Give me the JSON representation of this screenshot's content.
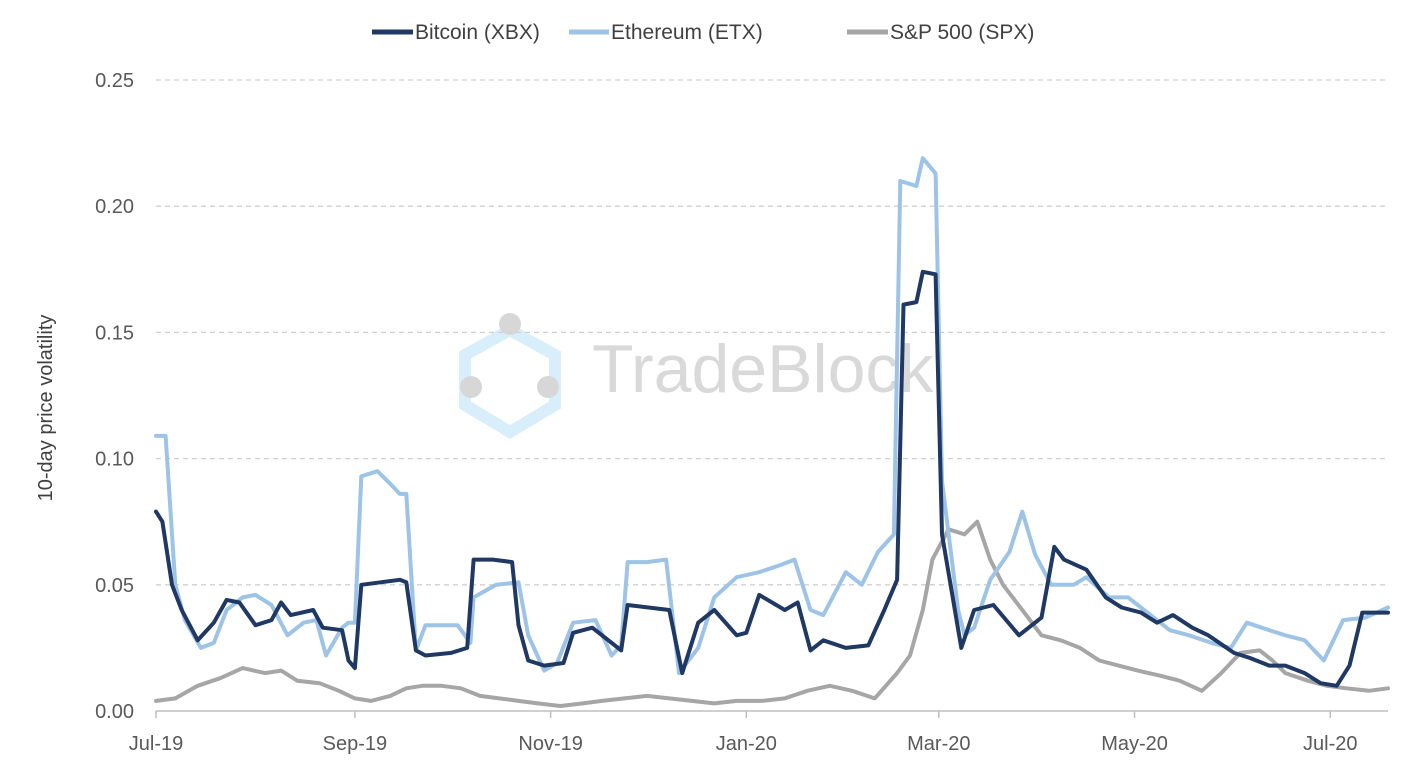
{
  "chart_data": {
    "type": "line",
    "title": "",
    "xlabel": "",
    "ylabel": "10-day price volatility",
    "ylim": [
      0,
      0.25
    ],
    "yticks": [
      0.0,
      0.05,
      0.1,
      0.15,
      0.2,
      0.25
    ],
    "ytick_labels": [
      "0.00",
      "0.05",
      "0.10",
      "0.15",
      "0.20",
      "0.25"
    ],
    "xlim": [
      "2019-07-01",
      "2020-07-19"
    ],
    "xticks": [
      {
        "date": "2019-07-01",
        "label": "Jul-19"
      },
      {
        "date": "2019-09-01",
        "label": "Sep-19"
      },
      {
        "date": "2019-11-01",
        "label": "Nov-19"
      },
      {
        "date": "2020-01-01",
        "label": "Jan-20"
      },
      {
        "date": "2020-03-01",
        "label": "Mar-20"
      },
      {
        "date": "2020-05-01",
        "label": "May-20"
      },
      {
        "date": "2020-07-01",
        "label": "Jul-20"
      }
    ],
    "grid": "horizontal-dashed",
    "legend": "top-center",
    "watermark": "TradeBlock",
    "series": [
      {
        "name": "Bitcoin (XBX)",
        "color": "#1f3864",
        "points": [
          [
            "2019-07-01",
            0.079
          ],
          [
            "2019-07-03",
            0.075
          ],
          [
            "2019-07-06",
            0.05
          ],
          [
            "2019-07-09",
            0.04
          ],
          [
            "2019-07-14",
            0.028
          ],
          [
            "2019-07-19",
            0.035
          ],
          [
            "2019-07-23",
            0.044
          ],
          [
            "2019-07-27",
            0.043
          ],
          [
            "2019-08-01",
            0.034
          ],
          [
            "2019-08-06",
            0.036
          ],
          [
            "2019-08-09",
            0.043
          ],
          [
            "2019-08-12",
            0.038
          ],
          [
            "2019-08-19",
            0.04
          ],
          [
            "2019-08-22",
            0.033
          ],
          [
            "2019-08-28",
            0.032
          ],
          [
            "2019-08-30",
            0.02
          ],
          [
            "2019-09-01",
            0.017
          ],
          [
            "2019-09-03",
            0.05
          ],
          [
            "2019-09-09",
            0.051
          ],
          [
            "2019-09-15",
            0.052
          ],
          [
            "2019-09-17",
            0.051
          ],
          [
            "2019-09-20",
            0.024
          ],
          [
            "2019-09-23",
            0.022
          ],
          [
            "2019-10-01",
            0.023
          ],
          [
            "2019-10-06",
            0.025
          ],
          [
            "2019-10-08",
            0.06
          ],
          [
            "2019-10-14",
            0.06
          ],
          [
            "2019-10-20",
            0.059
          ],
          [
            "2019-10-22",
            0.034
          ],
          [
            "2019-10-25",
            0.02
          ],
          [
            "2019-10-30",
            0.018
          ],
          [
            "2019-11-05",
            0.019
          ],
          [
            "2019-11-08",
            0.031
          ],
          [
            "2019-11-14",
            0.033
          ],
          [
            "2019-11-19",
            0.028
          ],
          [
            "2019-11-23",
            0.024
          ],
          [
            "2019-11-25",
            0.042
          ],
          [
            "2019-12-08",
            0.04
          ],
          [
            "2019-12-12",
            0.015
          ],
          [
            "2019-12-17",
            0.035
          ],
          [
            "2019-12-22",
            0.04
          ],
          [
            "2019-12-29",
            0.03
          ],
          [
            "2020-01-01",
            0.031
          ],
          [
            "2020-01-05",
            0.046
          ],
          [
            "2020-01-13",
            0.04
          ],
          [
            "2020-01-17",
            0.043
          ],
          [
            "2020-01-21",
            0.024
          ],
          [
            "2020-01-25",
            0.028
          ],
          [
            "2020-02-01",
            0.025
          ],
          [
            "2020-02-08",
            0.026
          ],
          [
            "2020-02-13",
            0.04
          ],
          [
            "2020-02-17",
            0.052
          ],
          [
            "2020-02-19",
            0.161
          ],
          [
            "2020-02-23",
            0.162
          ],
          [
            "2020-02-25",
            0.174
          ],
          [
            "2020-02-29",
            0.173
          ],
          [
            "2020-03-02",
            0.07
          ],
          [
            "2020-03-08",
            0.025
          ],
          [
            "2020-03-12",
            0.04
          ],
          [
            "2020-03-18",
            0.042
          ],
          [
            "2020-03-26",
            0.03
          ],
          [
            "2020-04-02",
            0.037
          ],
          [
            "2020-04-06",
            0.065
          ],
          [
            "2020-04-09",
            0.06
          ],
          [
            "2020-04-16",
            0.056
          ],
          [
            "2020-04-22",
            0.045
          ],
          [
            "2020-04-27",
            0.041
          ],
          [
            "2020-05-03",
            0.039
          ],
          [
            "2020-05-08",
            0.035
          ],
          [
            "2020-05-13",
            0.038
          ],
          [
            "2020-05-19",
            0.033
          ],
          [
            "2020-05-24",
            0.03
          ],
          [
            "2020-06-01",
            0.023
          ],
          [
            "2020-06-06",
            0.021
          ],
          [
            "2020-06-12",
            0.018
          ],
          [
            "2020-06-17",
            0.018
          ],
          [
            "2020-06-23",
            0.015
          ],
          [
            "2020-06-28",
            0.011
          ],
          [
            "2020-07-03",
            0.01
          ],
          [
            "2020-07-07",
            0.018
          ],
          [
            "2020-07-11",
            0.039
          ],
          [
            "2020-07-19",
            0.039
          ]
        ]
      },
      {
        "name": "Ethereum (ETX)",
        "color": "#9dc3e6",
        "points": [
          [
            "2019-07-01",
            0.109
          ],
          [
            "2019-07-04",
            0.109
          ],
          [
            "2019-07-07",
            0.05
          ],
          [
            "2019-07-10",
            0.036
          ],
          [
            "2019-07-15",
            0.025
          ],
          [
            "2019-07-19",
            0.027
          ],
          [
            "2019-07-23",
            0.04
          ],
          [
            "2019-07-28",
            0.045
          ],
          [
            "2019-08-01",
            0.046
          ],
          [
            "2019-08-06",
            0.042
          ],
          [
            "2019-08-11",
            0.03
          ],
          [
            "2019-08-16",
            0.035
          ],
          [
            "2019-08-20",
            0.036
          ],
          [
            "2019-08-23",
            0.022
          ],
          [
            "2019-08-28",
            0.033
          ],
          [
            "2019-08-30",
            0.035
          ],
          [
            "2019-09-01",
            0.035
          ],
          [
            "2019-09-03",
            0.093
          ],
          [
            "2019-09-08",
            0.095
          ],
          [
            "2019-09-12",
            0.09
          ],
          [
            "2019-09-15",
            0.086
          ],
          [
            "2019-09-17",
            0.086
          ],
          [
            "2019-09-20",
            0.024
          ],
          [
            "2019-09-23",
            0.034
          ],
          [
            "2019-10-03",
            0.034
          ],
          [
            "2019-10-07",
            0.027
          ],
          [
            "2019-10-08",
            0.045
          ],
          [
            "2019-10-15",
            0.05
          ],
          [
            "2019-10-22",
            0.051
          ],
          [
            "2019-10-25",
            0.03
          ],
          [
            "2019-10-30",
            0.016
          ],
          [
            "2019-11-03",
            0.019
          ],
          [
            "2019-11-08",
            0.035
          ],
          [
            "2019-11-15",
            0.036
          ],
          [
            "2019-11-20",
            0.022
          ],
          [
            "2019-11-23",
            0.026
          ],
          [
            "2019-11-25",
            0.059
          ],
          [
            "2019-12-01",
            0.059
          ],
          [
            "2019-12-07",
            0.06
          ],
          [
            "2019-12-11",
            0.015
          ],
          [
            "2019-12-17",
            0.025
          ],
          [
            "2019-12-22",
            0.045
          ],
          [
            "2019-12-29",
            0.053
          ],
          [
            "2020-01-05",
            0.055
          ],
          [
            "2020-01-12",
            0.058
          ],
          [
            "2020-01-16",
            0.06
          ],
          [
            "2020-01-21",
            0.04
          ],
          [
            "2020-01-25",
            0.038
          ],
          [
            "2020-02-01",
            0.055
          ],
          [
            "2020-02-06",
            0.05
          ],
          [
            "2020-02-11",
            0.063
          ],
          [
            "2020-02-16",
            0.07
          ],
          [
            "2020-02-18",
            0.21
          ],
          [
            "2020-02-23",
            0.208
          ],
          [
            "2020-02-25",
            0.219
          ],
          [
            "2020-02-29",
            0.213
          ],
          [
            "2020-03-02",
            0.091
          ],
          [
            "2020-03-07",
            0.04
          ],
          [
            "2020-03-09",
            0.03
          ],
          [
            "2020-03-12",
            0.033
          ],
          [
            "2020-03-17",
            0.052
          ],
          [
            "2020-03-23",
            0.063
          ],
          [
            "2020-03-27",
            0.079
          ],
          [
            "2020-03-31",
            0.062
          ],
          [
            "2020-04-05",
            0.05
          ],
          [
            "2020-04-12",
            0.05
          ],
          [
            "2020-04-16",
            0.053
          ],
          [
            "2020-04-23",
            0.045
          ],
          [
            "2020-04-29",
            0.045
          ],
          [
            "2020-05-06",
            0.038
          ],
          [
            "2020-05-12",
            0.032
          ],
          [
            "2020-05-18",
            0.03
          ],
          [
            "2020-05-25",
            0.027
          ],
          [
            "2020-05-31",
            0.025
          ],
          [
            "2020-06-05",
            0.035
          ],
          [
            "2020-06-12",
            0.032
          ],
          [
            "2020-06-17",
            0.03
          ],
          [
            "2020-06-23",
            0.028
          ],
          [
            "2020-06-29",
            0.02
          ],
          [
            "2020-07-05",
            0.036
          ],
          [
            "2020-07-12",
            0.037
          ],
          [
            "2020-07-19",
            0.041
          ]
        ]
      },
      {
        "name": "S&P 500 (SPX)",
        "color": "#a6a6a6",
        "points": [
          [
            "2019-07-01",
            0.004
          ],
          [
            "2019-07-07",
            0.005
          ],
          [
            "2019-07-14",
            0.01
          ],
          [
            "2019-07-21",
            0.013
          ],
          [
            "2019-07-28",
            0.017
          ],
          [
            "2019-08-04",
            0.015
          ],
          [
            "2019-08-09",
            0.016
          ],
          [
            "2019-08-14",
            0.012
          ],
          [
            "2019-08-21",
            0.011
          ],
          [
            "2019-08-27",
            0.008
          ],
          [
            "2019-09-01",
            0.005
          ],
          [
            "2019-09-06",
            0.004
          ],
          [
            "2019-09-12",
            0.006
          ],
          [
            "2019-09-17",
            0.009
          ],
          [
            "2019-09-22",
            0.01
          ],
          [
            "2019-09-28",
            0.01
          ],
          [
            "2019-10-04",
            0.009
          ],
          [
            "2019-10-10",
            0.006
          ],
          [
            "2019-10-16",
            0.005
          ],
          [
            "2019-10-22",
            0.004
          ],
          [
            "2019-10-28",
            0.003
          ],
          [
            "2019-11-04",
            0.002
          ],
          [
            "2019-11-11",
            0.003
          ],
          [
            "2019-11-17",
            0.004
          ],
          [
            "2019-11-24",
            0.005
          ],
          [
            "2019-12-01",
            0.006
          ],
          [
            "2019-12-08",
            0.005
          ],
          [
            "2019-12-15",
            0.004
          ],
          [
            "2019-12-22",
            0.003
          ],
          [
            "2019-12-29",
            0.004
          ],
          [
            "2020-01-06",
            0.004
          ],
          [
            "2020-01-13",
            0.005
          ],
          [
            "2020-01-20",
            0.008
          ],
          [
            "2020-01-27",
            0.01
          ],
          [
            "2020-02-03",
            0.008
          ],
          [
            "2020-02-10",
            0.005
          ],
          [
            "2020-02-17",
            0.015
          ],
          [
            "2020-02-21",
            0.022
          ],
          [
            "2020-02-25",
            0.04
          ],
          [
            "2020-02-28",
            0.06
          ],
          [
            "2020-03-04",
            0.072
          ],
          [
            "2020-03-09",
            0.07
          ],
          [
            "2020-03-13",
            0.075
          ],
          [
            "2020-03-17",
            0.06
          ],
          [
            "2020-03-21",
            0.05
          ],
          [
            "2020-03-27",
            0.04
          ],
          [
            "2020-04-02",
            0.03
          ],
          [
            "2020-04-08",
            0.028
          ],
          [
            "2020-04-14",
            0.025
          ],
          [
            "2020-04-20",
            0.02
          ],
          [
            "2020-04-26",
            0.018
          ],
          [
            "2020-05-02",
            0.016
          ],
          [
            "2020-05-09",
            0.014
          ],
          [
            "2020-05-15",
            0.012
          ],
          [
            "2020-05-22",
            0.008
          ],
          [
            "2020-05-28",
            0.015
          ],
          [
            "2020-06-03",
            0.023
          ],
          [
            "2020-06-09",
            0.024
          ],
          [
            "2020-06-13",
            0.02
          ],
          [
            "2020-06-17",
            0.015
          ],
          [
            "2020-06-24",
            0.012
          ],
          [
            "2020-06-30",
            0.01
          ],
          [
            "2020-07-06",
            0.009
          ],
          [
            "2020-07-13",
            0.008
          ],
          [
            "2020-07-19",
            0.009
          ]
        ]
      }
    ]
  }
}
